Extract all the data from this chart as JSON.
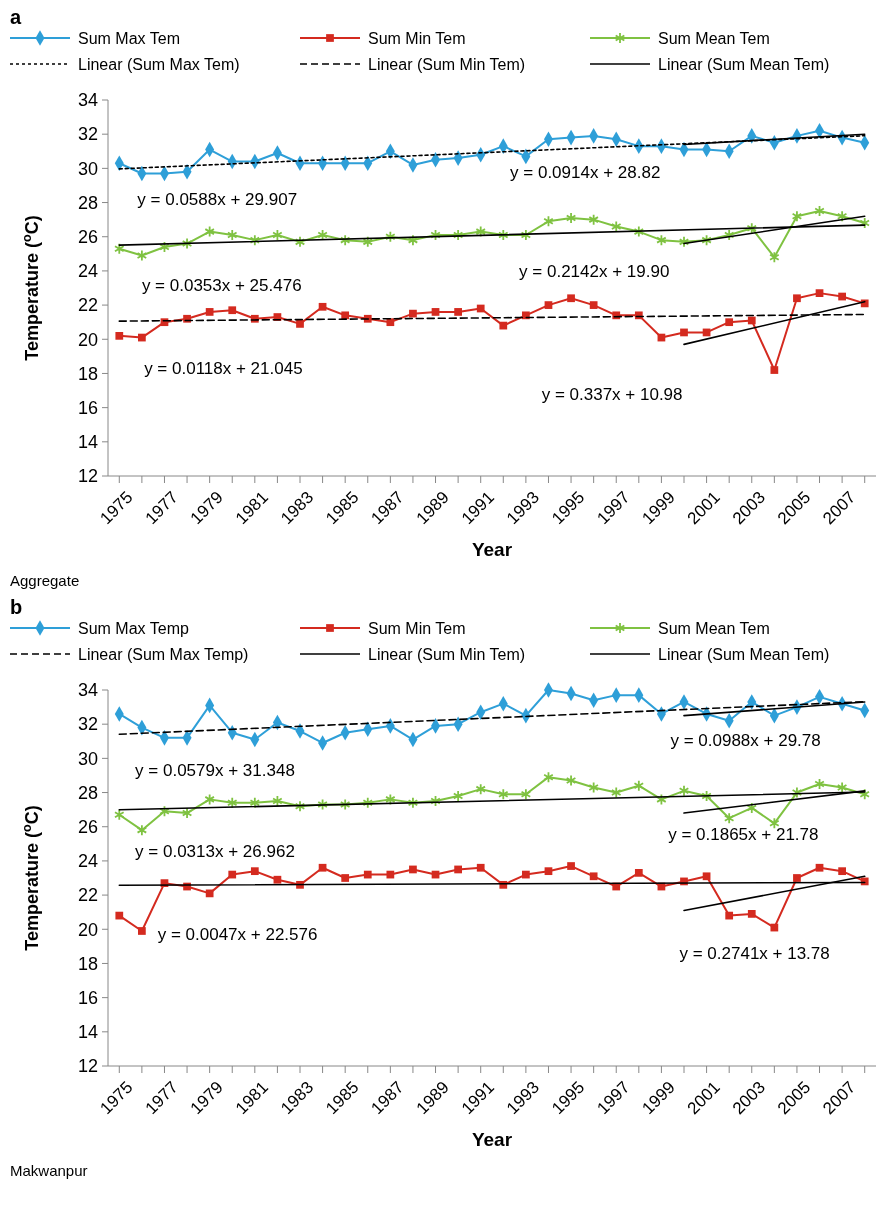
{
  "chart_data": [
    {
      "type": "line",
      "title": "a",
      "xlabel": "Year",
      "ylabel": "Temperature ($^{o}$C)",
      "legend": "top",
      "xlim": [
        1974.5,
        2008.5
      ],
      "ylim": [
        12,
        34
      ],
      "yticks": [
        12,
        14,
        16,
        18,
        20,
        22,
        24,
        26,
        28,
        30,
        32,
        34
      ],
      "xticks": [
        1975,
        {
          "value": 1976,
          "label": null
        },
        1977,
        {
          "value": 1978,
          "label": null
        },
        1979,
        {
          "value": 1980,
          "label": null
        },
        1981,
        {
          "value": 1982,
          "label": null
        },
        1983,
        {
          "value": 1984,
          "label": null
        },
        1985,
        {
          "value": 1986,
          "label": null
        },
        1987,
        {
          "value": 1988,
          "label": null
        },
        1989,
        {
          "value": 1990,
          "label": null
        },
        1991,
        {
          "value": 1992,
          "label": null
        },
        1993,
        {
          "value": 1994,
          "label": null
        },
        1995,
        {
          "value": 1996,
          "label": null
        },
        1997,
        {
          "value": 1998,
          "label": null
        },
        1999,
        {
          "value": 2000,
          "label": null
        },
        2001,
        {
          "value": 2002,
          "label": null
        },
        2003,
        {
          "value": 2004,
          "label": null
        },
        2005,
        {
          "value": 2006,
          "label": null
        },
        2007,
        {
          "value": 2008,
          "label": null
        }
      ],
      "x": [
        1975,
        1976,
        1977,
        1978,
        1979,
        1980,
        1981,
        1982,
        1983,
        1984,
        1985,
        1986,
        1987,
        1988,
        1989,
        1990,
        1991,
        1992,
        1993,
        1994,
        1995,
        1996,
        1997,
        1998,
        1999,
        2000,
        2001,
        2002,
        2003,
        2004,
        2005,
        2006,
        2007,
        2008
      ],
      "series": [
        {
          "name": "Sum Max Tem",
          "color": "#2e9fd8",
          "marker": "diamond",
          "line_style": "solid",
          "values": [
            30.3,
            29.7,
            29.7,
            29.8,
            31.1,
            30.4,
            30.4,
            30.9,
            30.3,
            30.3,
            30.3,
            30.3,
            31.0,
            30.2,
            30.5,
            30.6,
            30.8,
            31.3,
            30.7,
            31.7,
            31.8,
            31.9,
            31.7,
            31.3,
            31.3,
            31.1,
            31.1,
            31.0,
            31.9,
            31.5,
            31.9,
            32.2,
            31.8,
            31.5
          ]
        },
        {
          "name": "Sum Min Tem",
          "color": "#d42a1f",
          "marker": "square",
          "line_style": "solid",
          "values": [
            20.2,
            20.1,
            21.0,
            21.2,
            21.6,
            21.7,
            21.2,
            21.3,
            20.9,
            21.9,
            21.4,
            21.2,
            21.0,
            21.5,
            21.6,
            21.6,
            21.8,
            20.8,
            21.4,
            22.0,
            22.4,
            22.0,
            21.4,
            21.4,
            20.1,
            20.4,
            20.4,
            21.0,
            21.1,
            18.2,
            22.4,
            22.7,
            22.5,
            22.1
          ]
        },
        {
          "name": "Sum Mean Tem",
          "color": "#7fc241",
          "marker": "cross",
          "line_style": "solid",
          "values": [
            25.3,
            24.9,
            25.4,
            25.6,
            26.3,
            26.1,
            25.8,
            26.1,
            25.7,
            26.1,
            25.8,
            25.7,
            26.0,
            25.8,
            26.1,
            26.1,
            26.3,
            26.1,
            26.1,
            26.9,
            27.1,
            27.0,
            26.6,
            26.3,
            25.8,
            25.7,
            25.8,
            26.1,
            26.5,
            24.8,
            27.2,
            27.5,
            27.2,
            26.8
          ]
        },
        {
          "type": "line",
          "name": "Linear (Sum Max Tem)",
          "color": "#000000",
          "marker": "none",
          "line_style": "dotted",
          "x": [
            1975,
            2008
          ],
          "values": [
            29.97,
            31.91
          ]
        },
        {
          "type": "line",
          "name": "Linear (Sum Min Tem)",
          "color": "#000000",
          "marker": "none",
          "line_style": "dashed",
          "x": [
            1975,
            2008
          ],
          "values": [
            21.06,
            21.45
          ]
        },
        {
          "type": "line",
          "name": "Linear (Sum Mean Tem)",
          "color": "#000000",
          "marker": "none",
          "line_style": "solid",
          "x": [
            1975,
            2008
          ],
          "values": [
            25.51,
            26.68
          ]
        },
        {
          "type": "line",
          "color": "#000000",
          "marker": "none",
          "line_style": "solid",
          "x": [
            2000,
            2008
          ],
          "values": [
            31.4,
            32.0
          ]
        },
        {
          "type": "line",
          "color": "#000000",
          "marker": "none",
          "line_style": "solid",
          "x": [
            2000,
            2008
          ],
          "values": [
            25.6,
            27.2
          ]
        },
        {
          "type": "line",
          "color": "#000000",
          "marker": "none",
          "line_style": "solid",
          "x": [
            2000,
            2008
          ],
          "values": [
            19.7,
            22.2
          ]
        }
      ],
      "annotations": [
        "y = 0.0588x + 29.907",
        "y = 0.0353x + 25.476",
        "y = 0.0118x + 21.045",
        "y = 0.0914x + 28.82",
        "y = 0.2142x + 19.90",
        "y = 0.337x + 10.98",
        "Aggregate"
      ]
    },
    {
      "type": "line",
      "title": "b",
      "xlabel": "Year",
      "ylabel": "Temperature ($^{o}$C)",
      "legend": "top",
      "xlim": [
        1974.5,
        2008.5
      ],
      "ylim": [
        12,
        34
      ],
      "yticks": [
        12,
        14,
        16,
        18,
        20,
        22,
        24,
        26,
        28,
        30,
        32,
        34
      ],
      "xticks": [
        1975,
        {
          "value": 1976,
          "label": null
        },
        1977,
        {
          "value": 1978,
          "label": null
        },
        1979,
        {
          "value": 1980,
          "label": null
        },
        1981,
        {
          "value": 1982,
          "label": null
        },
        1983,
        {
          "value": 1984,
          "label": null
        },
        1985,
        {
          "value": 1986,
          "label": null
        },
        1987,
        {
          "value": 1988,
          "label": null
        },
        1989,
        {
          "value": 1990,
          "label": null
        },
        1991,
        {
          "value": 1992,
          "label": null
        },
        1993,
        {
          "value": 1994,
          "label": null
        },
        1995,
        {
          "value": 1996,
          "label": null
        },
        1997,
        {
          "value": 1998,
          "label": null
        },
        1999,
        {
          "value": 2000,
          "label": null
        },
        2001,
        {
          "value": 2002,
          "label": null
        },
        2003,
        {
          "value": 2004,
          "label": null
        },
        2005,
        {
          "value": 2006,
          "label": null
        },
        2007,
        {
          "value": 2008,
          "label": null
        }
      ],
      "x": [
        1975,
        1976,
        1977,
        1978,
        1979,
        1980,
        1981,
        1982,
        1983,
        1984,
        1985,
        1986,
        1987,
        1988,
        1989,
        1990,
        1991,
        1992,
        1993,
        1994,
        1995,
        1996,
        1997,
        1998,
        1999,
        2000,
        2001,
        2002,
        2003,
        2004,
        2005,
        2006,
        2007,
        2008
      ],
      "series": [
        {
          "name": "Sum Max Temp",
          "color": "#2e9fd8",
          "marker": "diamond",
          "line_style": "solid",
          "values": [
            32.6,
            31.8,
            31.2,
            31.2,
            33.1,
            31.5,
            31.1,
            32.1,
            31.6,
            30.9,
            31.5,
            31.7,
            31.9,
            31.1,
            31.9,
            32.0,
            32.7,
            33.2,
            32.5,
            34.0,
            33.8,
            33.4,
            33.7,
            33.7,
            32.6,
            33.3,
            32.6,
            32.2,
            33.3,
            32.5,
            33.0,
            33.6,
            33.2,
            32.8
          ]
        },
        {
          "name": "Sum Min Tem",
          "color": "#d42a1f",
          "marker": "square",
          "line_style": "solid",
          "values": [
            20.8,
            19.9,
            22.7,
            22.5,
            22.1,
            23.2,
            23.4,
            22.9,
            22.6,
            23.6,
            23.0,
            23.2,
            23.2,
            23.5,
            23.2,
            23.5,
            23.6,
            22.6,
            23.2,
            23.4,
            23.7,
            23.1,
            22.5,
            23.3,
            22.5,
            22.8,
            23.1,
            20.8,
            20.9,
            20.1,
            23.0,
            23.6,
            23.4,
            22.8
          ]
        },
        {
          "name": "Sum Mean Tem",
          "color": "#7fc241",
          "marker": "cross",
          "line_style": "solid",
          "values": [
            26.7,
            25.8,
            26.9,
            26.8,
            27.6,
            27.4,
            27.4,
            27.5,
            27.2,
            27.3,
            27.3,
            27.4,
            27.6,
            27.4,
            27.5,
            27.8,
            28.2,
            27.9,
            27.9,
            28.9,
            28.7,
            28.3,
            28.0,
            28.4,
            27.6,
            28.1,
            27.8,
            26.5,
            27.1,
            26.2,
            28.0,
            28.5,
            28.3,
            27.9
          ]
        },
        {
          "type": "line",
          "name": "Linear (Sum Max Temp)",
          "color": "#000000",
          "marker": "none",
          "line_style": "dashed",
          "x": [
            1975,
            2008
          ],
          "values": [
            31.41,
            33.32
          ]
        },
        {
          "type": "line",
          "name": "Linear (Sum Min Tem)",
          "color": "#000000",
          "marker": "none",
          "line_style": "solid",
          "x": [
            1975,
            2008
          ],
          "values": [
            22.58,
            22.74
          ]
        },
        {
          "type": "line",
          "name": "Linear (Sum Mean Tem)",
          "color": "#000000",
          "marker": "none",
          "line_style": "solid",
          "x": [
            1975,
            2008
          ],
          "values": [
            26.99,
            28.03
          ]
        },
        {
          "type": "line",
          "color": "#000000",
          "marker": "none",
          "line_style": "solid",
          "x": [
            2000,
            2008
          ],
          "values": [
            32.5,
            33.3
          ]
        },
        {
          "type": "line",
          "color": "#000000",
          "marker": "none",
          "line_style": "solid",
          "x": [
            2000,
            2008
          ],
          "values": [
            26.8,
            28.1
          ]
        },
        {
          "type": "line",
          "color": "#000000",
          "marker": "none",
          "line_style": "solid",
          "x": [
            2000,
            2008
          ],
          "values": [
            21.1,
            23.1
          ]
        }
      ],
      "annotations": [
        "y = 0.0579x + 31.348",
        "y = 0.0313x + 26.962",
        "y = 0.0047x + 22.576",
        "y = 0.0988x + 29.78",
        "y = 0.1865x + 21.78",
        "y = 0.2741x + 13.78",
        "Makwanpur"
      ]
    }
  ]
}
